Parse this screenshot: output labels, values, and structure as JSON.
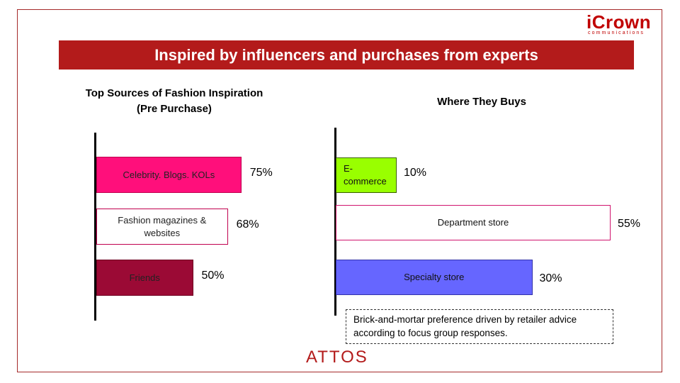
{
  "logo": {
    "main": "iCrown",
    "sub": "communications"
  },
  "banner": {
    "title": "Inspired by influencers and purchases from experts"
  },
  "chart_data": [
    {
      "type": "bar",
      "orientation": "horizontal",
      "title_line1": "Top Sources of Fashion Inspiration",
      "title_line2": "(Pre Purchase)",
      "categories": [
        "Celebrity. Blogs. KOLs",
        "Fashion magazines & websites",
        "Friends"
      ],
      "values": [
        75,
        68,
        50
      ],
      "labels": [
        "75%",
        "68%",
        "50%"
      ],
      "colors": [
        "#ff0f7b",
        "#ffffff",
        "#9b0a35"
      ],
      "border_colors": [
        "#c0004e",
        "#c0004e",
        "#6e0020"
      ],
      "xlim": [
        0,
        100
      ]
    },
    {
      "type": "bar",
      "orientation": "horizontal",
      "title_line1": "Where They Buys",
      "title_line2": "",
      "categories": [
        "E-commerce",
        "Department store",
        "Specialty store"
      ],
      "values": [
        10,
        55,
        30
      ],
      "labels": [
        "10%",
        "55%",
        "30%"
      ],
      "colors": [
        "#99ff00",
        "#ffffff",
        "#6666ff"
      ],
      "border_colors": [
        "#3a5f00",
        "#d0146e",
        "#3333aa"
      ],
      "xlim": [
        0,
        100
      ]
    }
  ],
  "note": {
    "text": "Brick-and-mortar preference driven by retailer advice according to focus group responses."
  },
  "footer": {
    "brand": "ATTOS"
  }
}
